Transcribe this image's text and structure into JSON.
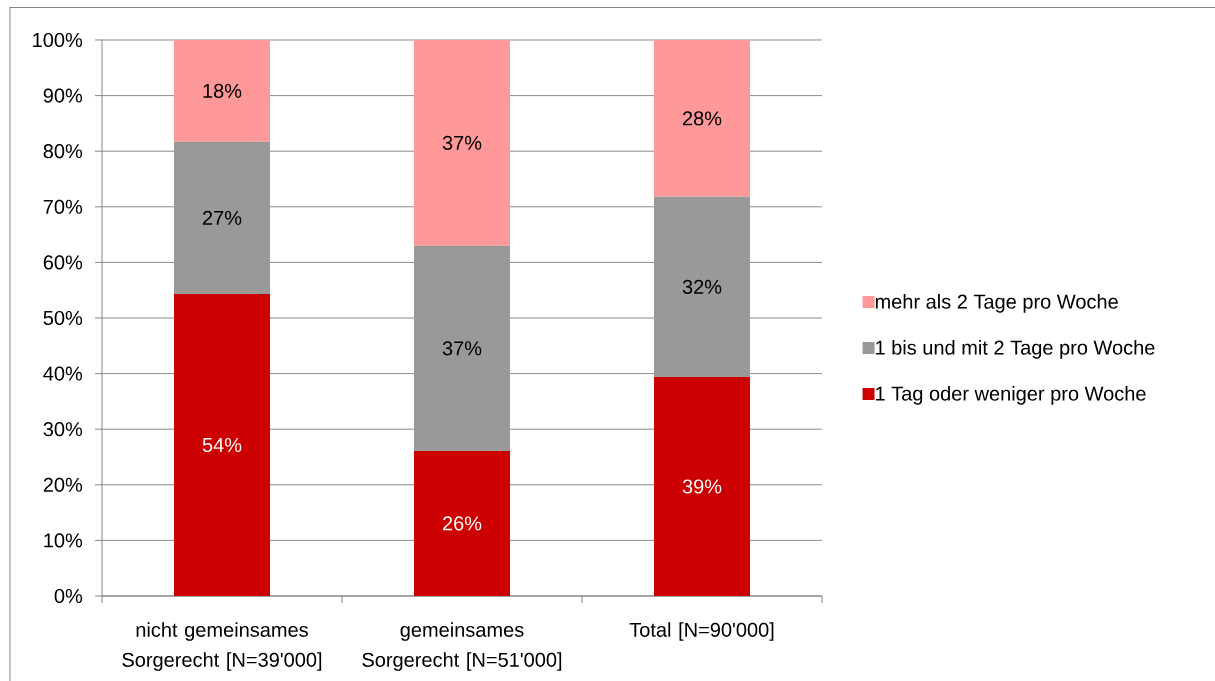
{
  "chart_data": {
    "type": "bar",
    "stacked": true,
    "categories": [
      "nicht gemeinsames Sorgerecht [N=39'000]",
      "gemeinsames Sorgerecht [N=51'000]",
      "Total [N=90'000]"
    ],
    "series": [
      {
        "name": "1 Tag oder weniger pro Woche",
        "color": "#cc0000",
        "values": [
          54.3,
          26.1,
          39.4
        ],
        "value_labels": [
          "54%",
          "26%",
          "39%"
        ]
      },
      {
        "name": "1 bis und mit 2 Tage pro Woche",
        "color": "#999999",
        "values": [
          27.4,
          36.9,
          32.4
        ],
        "value_labels": [
          "27%",
          "37%",
          "32%"
        ]
      },
      {
        "name": "mehr als 2 Tage pro Woche",
        "color": "#ff9999",
        "values": [
          18.3,
          37.0,
          28.2
        ],
        "value_labels": [
          "18%",
          "37%",
          "28%"
        ]
      }
    ],
    "ylim": [
      0,
      100
    ],
    "yticks": [
      {
        "value": 0,
        "label": "0%"
      },
      {
        "value": 10,
        "label": "10%"
      },
      {
        "value": 20,
        "label": "20%"
      },
      {
        "value": 30,
        "label": "30%"
      },
      {
        "value": 40,
        "label": "40%"
      },
      {
        "value": 50,
        "label": "50%"
      },
      {
        "value": 60,
        "label": "60%"
      },
      {
        "value": 70,
        "label": "70%"
      },
      {
        "value": 80,
        "label": "80%"
      },
      {
        "value": 90,
        "label": "90%"
      },
      {
        "value": 100,
        "label": "100%"
      }
    ],
    "grid": "y",
    "legend": "right"
  }
}
